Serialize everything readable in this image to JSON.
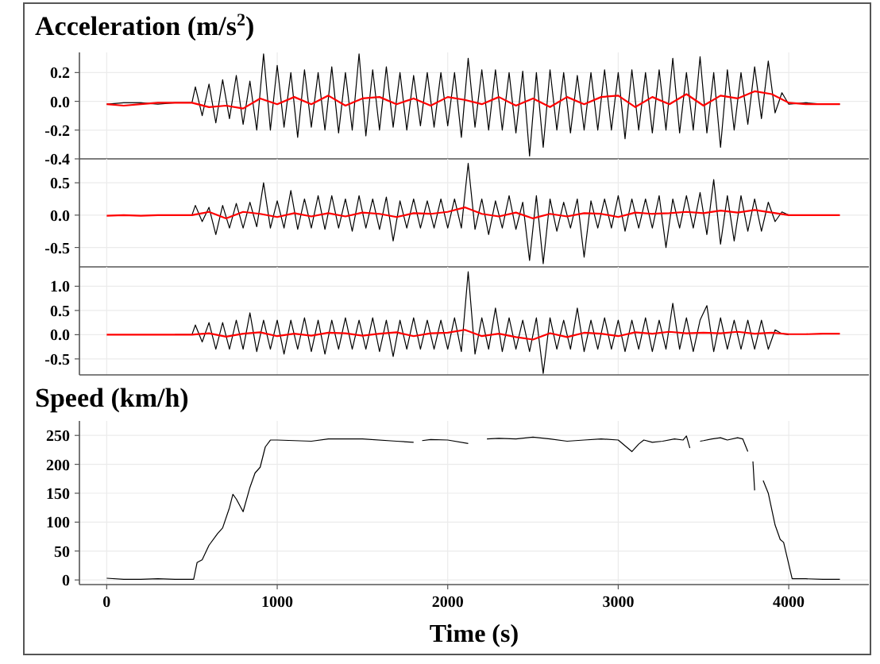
{
  "chart_data": [
    {
      "type": "line",
      "title": "Acceleration (m/s$^{2}$)",
      "xlim": [
        -160,
        4470
      ],
      "xticks": [
        0,
        1000,
        2000,
        3000,
        4000
      ],
      "ylim": [
        -0.4,
        0.34
      ],
      "yticks": [
        {
          "value": 0.2,
          "label": "0.2"
        },
        {
          "value": 0,
          "label": "0.0"
        },
        {
          "value": -0.2,
          "label": "-0.2"
        },
        {
          "value": -0.4,
          "label": "-0.4"
        }
      ],
      "grid": true,
      "tick_labels": "y",
      "series": [
        {
          "color": "#000000",
          "x": [
            0,
            100,
            200,
            300,
            400,
            500,
            520,
            560,
            600,
            640,
            680,
            720,
            760,
            800,
            840,
            880,
            920,
            960,
            1000,
            1040,
            1080,
            1120,
            1160,
            1200,
            1240,
            1280,
            1320,
            1360,
            1400,
            1440,
            1480,
            1520,
            1560,
            1600,
            1640,
            1680,
            1720,
            1760,
            1800,
            1840,
            1880,
            1920,
            1960,
            2000,
            2040,
            2080,
            2120,
            2160,
            2200,
            2240,
            2280,
            2320,
            2360,
            2400,
            2440,
            2480,
            2520,
            2560,
            2600,
            2640,
            2680,
            2720,
            2760,
            2800,
            2840,
            2880,
            2920,
            2960,
            3000,
            3040,
            3080,
            3120,
            3160,
            3200,
            3240,
            3280,
            3320,
            3360,
            3400,
            3440,
            3480,
            3520,
            3560,
            3600,
            3640,
            3680,
            3720,
            3760,
            3800,
            3840,
            3880,
            3920,
            3960,
            4000,
            4100,
            4200,
            4300
          ],
          "values": [
            -0.02,
            -0.01,
            -0.01,
            -0.02,
            -0.01,
            -0.01,
            0.1,
            -0.1,
            0.12,
            -0.15,
            0.15,
            -0.12,
            0.18,
            -0.16,
            0.14,
            -0.2,
            0.33,
            -0.2,
            0.25,
            -0.18,
            0.2,
            -0.25,
            0.22,
            -0.18,
            0.2,
            -0.2,
            0.24,
            -0.22,
            0.2,
            -0.2,
            0.33,
            -0.24,
            0.22,
            -0.2,
            0.24,
            -0.18,
            0.2,
            -0.2,
            0.18,
            -0.17,
            0.2,
            -0.18,
            0.2,
            -0.17,
            0.2,
            -0.25,
            0.3,
            -0.18,
            0.22,
            -0.2,
            0.22,
            -0.2,
            0.2,
            -0.22,
            0.21,
            -0.38,
            0.2,
            -0.32,
            0.22,
            -0.2,
            0.2,
            -0.22,
            0.18,
            -0.2,
            0.2,
            -0.2,
            0.22,
            -0.2,
            0.2,
            -0.26,
            0.22,
            -0.2,
            0.2,
            -0.22,
            0.22,
            -0.2,
            0.3,
            -0.22,
            0.2,
            -0.2,
            0.31,
            -0.22,
            0.2,
            -0.32,
            0.22,
            -0.2,
            0.2,
            -0.16,
            0.24,
            -0.12,
            0.28,
            -0.08,
            0.06,
            -0.02,
            -0.01,
            -0.02,
            -0.02
          ]
        },
        {
          "color": "#ff0000",
          "x": [
            0,
            100,
            200,
            300,
            400,
            500,
            600,
            700,
            800,
            900,
            1000,
            1100,
            1200,
            1300,
            1400,
            1500,
            1600,
            1700,
            1800,
            1900,
            2000,
            2100,
            2200,
            2300,
            2400,
            2500,
            2600,
            2700,
            2800,
            2900,
            3000,
            3100,
            3200,
            3300,
            3400,
            3500,
            3600,
            3700,
            3800,
            3900,
            4000,
            4100,
            4200,
            4300
          ],
          "values": [
            -0.02,
            -0.03,
            -0.02,
            -0.01,
            -0.01,
            -0.01,
            -0.04,
            -0.03,
            -0.05,
            0.02,
            -0.02,
            0.03,
            -0.02,
            0.04,
            -0.03,
            0.02,
            0.03,
            -0.02,
            0.02,
            -0.03,
            0.03,
            0.01,
            -0.02,
            0.03,
            -0.03,
            0.02,
            -0.04,
            0.03,
            -0.02,
            0.03,
            0.04,
            -0.04,
            0.03,
            -0.02,
            0.05,
            -0.03,
            0.04,
            0.02,
            0.07,
            0.05,
            -0.01,
            -0.02,
            -0.02,
            -0.02
          ]
        }
      ]
    },
    {
      "type": "line",
      "xlim": [
        -160,
        4470
      ],
      "xticks": [
        0,
        1000,
        2000,
        3000,
        4000
      ],
      "ylim": [
        -0.8,
        0.87
      ],
      "yticks": [
        {
          "value": 0.5,
          "label": "0.5"
        },
        {
          "value": 0,
          "label": "0.0"
        },
        {
          "value": -0.5,
          "label": "-0.5"
        }
      ],
      "grid": true,
      "tick_labels": "y",
      "series": [
        {
          "color": "#000000",
          "x": [
            400,
            500,
            520,
            560,
            600,
            640,
            680,
            720,
            760,
            800,
            840,
            880,
            920,
            960,
            1000,
            1040,
            1080,
            1120,
            1160,
            1200,
            1240,
            1280,
            1320,
            1360,
            1400,
            1440,
            1480,
            1520,
            1560,
            1600,
            1640,
            1680,
            1720,
            1760,
            1800,
            1840,
            1880,
            1920,
            1960,
            2000,
            2040,
            2080,
            2120,
            2160,
            2200,
            2240,
            2280,
            2320,
            2360,
            2400,
            2440,
            2480,
            2520,
            2560,
            2600,
            2640,
            2680,
            2720,
            2760,
            2800,
            2840,
            2880,
            2920,
            2960,
            3000,
            3040,
            3080,
            3120,
            3160,
            3200,
            3240,
            3280,
            3320,
            3360,
            3400,
            3440,
            3480,
            3520,
            3560,
            3600,
            3640,
            3680,
            3720,
            3760,
            3800,
            3840,
            3880,
            3920,
            3960,
            4000
          ],
          "values": [
            0,
            0,
            0.15,
            -0.1,
            0.12,
            -0.3,
            0.15,
            -0.2,
            0.18,
            -0.2,
            0.2,
            -0.18,
            0.5,
            -0.2,
            0.22,
            -0.2,
            0.38,
            -0.22,
            0.25,
            -0.2,
            0.3,
            -0.22,
            0.3,
            -0.2,
            0.25,
            -0.25,
            0.3,
            -0.2,
            0.25,
            -0.22,
            0.28,
            -0.4,
            0.22,
            -0.2,
            0.25,
            -0.2,
            0.22,
            -0.2,
            0.25,
            -0.2,
            0.25,
            -0.2,
            0.8,
            -0.22,
            0.25,
            -0.3,
            0.22,
            -0.2,
            0.3,
            -0.22,
            0.2,
            -0.7,
            0.3,
            -0.75,
            0.25,
            -0.25,
            0.2,
            -0.2,
            0.25,
            -0.65,
            0.22,
            -0.2,
            0.25,
            -0.2,
            0.3,
            -0.25,
            0.25,
            -0.2,
            0.25,
            -0.2,
            0.3,
            -0.5,
            0.25,
            -0.2,
            0.3,
            -0.2,
            0.35,
            -0.3,
            0.55,
            -0.45,
            0.3,
            -0.4,
            0.3,
            -0.25,
            0.25,
            -0.25,
            0.2,
            -0.1,
            0.05,
            0
          ]
        },
        {
          "color": "#ff0000",
          "x": [
            0,
            100,
            200,
            300,
            400,
            500,
            600,
            700,
            800,
            900,
            1000,
            1100,
            1200,
            1300,
            1400,
            1500,
            1600,
            1700,
            1800,
            1900,
            2000,
            2100,
            2200,
            2300,
            2400,
            2500,
            2600,
            2700,
            2800,
            2900,
            3000,
            3100,
            3200,
            3300,
            3400,
            3500,
            3600,
            3700,
            3800,
            3900,
            4000,
            4100,
            4200,
            4300
          ],
          "values": [
            -0.01,
            0,
            -0.01,
            0,
            0,
            0,
            0.05,
            -0.05,
            0.05,
            0.02,
            -0.03,
            0.03,
            -0.02,
            0.03,
            -0.02,
            0.04,
            0.02,
            -0.03,
            0.03,
            0.02,
            0.05,
            0.12,
            0.02,
            -0.02,
            0.04,
            -0.05,
            0.02,
            -0.02,
            0.03,
            0.02,
            -0.03,
            0.04,
            0.02,
            0.03,
            0.05,
            0.03,
            0.07,
            0.04,
            0.08,
            0.04,
            0,
            0,
            0,
            0
          ]
        }
      ]
    },
    {
      "type": "line",
      "xlim": [
        -160,
        4470
      ],
      "xticks": [
        0,
        1000,
        2000,
        3000,
        4000
      ],
      "ylim": [
        -0.83,
        1.4
      ],
      "yticks": [
        {
          "value": 1,
          "label": "1.0"
        },
        {
          "value": 0.5,
          "label": "0.5"
        },
        {
          "value": 0,
          "label": "0.0"
        },
        {
          "value": -0.5,
          "label": "-0.5"
        }
      ],
      "grid": true,
      "tick_labels": "y",
      "series": [
        {
          "color": "#000000",
          "x": [
            400,
            500,
            520,
            560,
            600,
            640,
            680,
            720,
            760,
            800,
            840,
            880,
            920,
            960,
            1000,
            1040,
            1080,
            1120,
            1160,
            1200,
            1240,
            1280,
            1320,
            1360,
            1400,
            1440,
            1480,
            1520,
            1560,
            1600,
            1640,
            1680,
            1720,
            1760,
            1800,
            1840,
            1880,
            1920,
            1960,
            2000,
            2040,
            2080,
            2120,
            2160,
            2200,
            2240,
            2280,
            2320,
            2360,
            2400,
            2440,
            2480,
            2520,
            2560,
            2600,
            2640,
            2680,
            2720,
            2760,
            2800,
            2840,
            2880,
            2920,
            2960,
            3000,
            3040,
            3080,
            3120,
            3160,
            3200,
            3240,
            3280,
            3320,
            3360,
            3400,
            3440,
            3480,
            3520,
            3560,
            3600,
            3640,
            3680,
            3720,
            3760,
            3800,
            3840,
            3880,
            3920,
            3960,
            4000
          ],
          "values": [
            0,
            0,
            0.2,
            -0.15,
            0.25,
            -0.3,
            0.25,
            -0.3,
            0.3,
            -0.3,
            0.45,
            -0.35,
            0.3,
            -0.3,
            0.3,
            -0.4,
            0.3,
            -0.3,
            0.35,
            -0.35,
            0.3,
            -0.4,
            0.3,
            -0.3,
            0.35,
            -0.3,
            0.3,
            -0.3,
            0.35,
            -0.35,
            0.3,
            -0.45,
            0.3,
            -0.3,
            0.35,
            -0.3,
            0.3,
            -0.3,
            0.3,
            -0.3,
            0.35,
            -0.35,
            1.3,
            -0.4,
            0.35,
            -0.3,
            0.55,
            -0.35,
            0.35,
            -0.3,
            0.3,
            -0.35,
            0.35,
            -0.8,
            0.35,
            -0.3,
            0.3,
            -0.3,
            0.55,
            -0.35,
            0.3,
            -0.3,
            0.35,
            -0.3,
            0.3,
            -0.35,
            0.3,
            -0.3,
            0.35,
            -0.35,
            0.3,
            -0.3,
            0.65,
            -0.3,
            0.35,
            -0.35,
            0.3,
            0.6,
            -0.35,
            0.35,
            -0.3,
            0.3,
            -0.3,
            0.3,
            -0.3,
            0.3,
            -0.3,
            0.1,
            0.02,
            0
          ]
        },
        {
          "color": "#ff0000",
          "x": [
            0,
            100,
            200,
            300,
            400,
            500,
            600,
            700,
            800,
            900,
            1000,
            1100,
            1200,
            1300,
            1400,
            1500,
            1600,
            1700,
            1800,
            1900,
            2000,
            2100,
            2200,
            2300,
            2400,
            2500,
            2600,
            2700,
            2800,
            2900,
            3000,
            3100,
            3200,
            3300,
            3400,
            3500,
            3600,
            3700,
            3800,
            3900,
            4000,
            4100,
            4200,
            4300
          ],
          "values": [
            0,
            0,
            0,
            0,
            0,
            0,
            0.03,
            -0.04,
            0.02,
            0.05,
            -0.03,
            0.02,
            -0.02,
            0.04,
            0.03,
            -0.02,
            0.02,
            0.05,
            -0.03,
            0.03,
            0.04,
            0.1,
            -0.03,
            0.02,
            -0.05,
            -0.1,
            0.03,
            -0.05,
            0.04,
            0.02,
            -0.03,
            0.05,
            0.02,
            0.06,
            0.03,
            0.04,
            0.03,
            0.06,
            0.02,
            0.04,
            0.01,
            0.01,
            0.02,
            0.02
          ]
        }
      ]
    },
    {
      "type": "line",
      "title": "Speed (km/h)",
      "xlabel": "Time (s)",
      "xlim": [
        -160,
        4470
      ],
      "xticks": [
        0,
        1000,
        2000,
        3000,
        4000
      ],
      "ylim": [
        -8,
        275
      ],
      "yticks": [
        0,
        50,
        100,
        150,
        200,
        250
      ],
      "grid": true,
      "series": [
        {
          "color": "#000000",
          "x": [
            0,
            100,
            200,
            300,
            400,
            500,
            510,
            530,
            560,
            600,
            650,
            680,
            720,
            740,
            760,
            800,
            840,
            870,
            900,
            930,
            960,
            1000,
            1200,
            1300,
            1500,
            1700,
            1800,
            1820,
            1850,
            1900,
            2000,
            2120,
            2140,
            2230,
            2300,
            2400,
            2500,
            2600,
            2700,
            2800,
            2900,
            3000,
            3040,
            3080,
            3120,
            3150,
            3200,
            3260,
            3330,
            3380,
            3400,
            3420,
            3440,
            3480,
            3500,
            3550,
            3575,
            3600,
            3620,
            3640,
            3700,
            3730,
            3760,
            3775,
            3790,
            3800,
            3810,
            3850,
            3880,
            3920,
            3950,
            3970,
            3990,
            4020,
            4100,
            4200,
            4300
          ],
          "values": [
            3,
            1,
            1,
            2,
            1,
            1,
            1,
            30,
            35,
            60,
            80,
            90,
            125,
            148,
            140,
            118,
            160,
            185,
            195,
            230,
            242,
            242,
            240,
            244,
            244,
            240,
            238,
            null,
            241,
            243,
            242,
            236,
            null,
            244,
            245,
            244,
            247,
            244,
            240,
            242,
            244,
            242,
            232,
            222,
            235,
            242,
            238,
            240,
            244,
            242,
            249,
            228,
            null,
            240,
            241,
            244,
            245,
            246,
            244,
            242,
            246,
            244,
            222,
            null,
            205,
            155,
            null,
            172,
            150,
            95,
            70,
            65,
            40,
            2,
            2,
            1,
            1
          ]
        }
      ]
    }
  ]
}
